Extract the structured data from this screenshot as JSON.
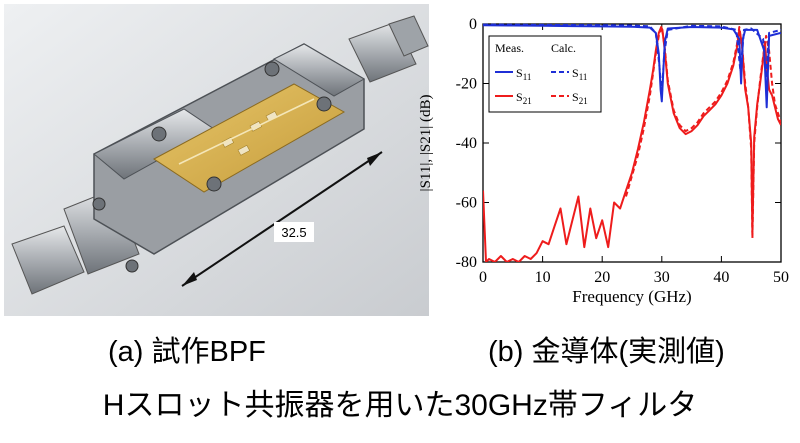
{
  "photo": {
    "dimension_label": "32.5"
  },
  "captions": {
    "a": "(a) 試作BPF",
    "b": "(b) 金導体(実測値)",
    "main": "Hスロット共振器を用いた30GHz帯フィルタ"
  },
  "colors": {
    "s11": "#1f2fd6",
    "s21": "#ee1c1c",
    "board": "#d8b454",
    "metal": "#b9bcc0"
  },
  "chart_data": {
    "type": "line",
    "xlabel": "Frequency (GHz)",
    "ylabel": "|S11|, |S21| (dB)",
    "xlim": [
      0,
      50
    ],
    "ylim": [
      -80,
      0
    ],
    "xticks": [
      0,
      10,
      20,
      30,
      40,
      50
    ],
    "yticks": [
      0,
      -20,
      -40,
      -60,
      -80
    ],
    "grid": false,
    "legend": {
      "placement": "top-left",
      "header_meas": "Meas.",
      "header_calc": "Calc.",
      "entries": [
        {
          "base": "S",
          "sub": "11",
          "meas_label": "S11",
          "calc_label": "S11",
          "color": "#1f2fd6"
        },
        {
          "base": "S",
          "sub": "21",
          "meas_label": "S21",
          "calc_label": "S21",
          "color": "#ee1c1c"
        }
      ]
    },
    "series": [
      {
        "key": "s21_meas",
        "color": "#ee1c1c",
        "dash": false,
        "x": [
          0,
          0.5,
          1,
          2,
          3,
          4,
          5,
          6,
          7,
          8,
          9,
          10,
          11,
          12,
          13,
          14,
          15,
          16,
          17,
          18,
          19,
          20,
          21,
          22,
          23,
          24,
          25,
          26,
          27,
          28,
          28.5,
          29,
          29.5,
          29.9,
          30.1,
          30.5,
          31,
          32,
          33,
          34,
          35,
          36,
          37,
          38,
          39,
          40,
          41,
          42,
          42.6,
          43,
          43.4,
          43.7,
          44,
          44.5,
          45,
          45.2,
          45.5,
          46,
          46.5,
          47,
          47.3,
          47.6,
          48,
          48.5,
          49,
          49.5,
          50
        ],
        "y": [
          -56,
          -80,
          -79,
          -80,
          -78,
          -80,
          -79,
          -80,
          -78,
          -79,
          -77,
          -73,
          -74,
          -68,
          -62,
          -74,
          -66,
          -58,
          -75,
          -62,
          -72,
          -66,
          -75,
          -60,
          -62,
          -56,
          -50,
          -42,
          -33,
          -22,
          -16,
          -9,
          -3,
          -1,
          -2,
          -9,
          -20,
          -30,
          -35,
          -37,
          -36,
          -34,
          -31,
          -29,
          -27,
          -24,
          -20,
          -14,
          -8,
          -2,
          -6,
          -14,
          -22,
          -28,
          -40,
          -70,
          -38,
          -27,
          -20,
          -12,
          -6,
          -14,
          -22,
          -24,
          -28,
          -32,
          -34
        ]
      },
      {
        "key": "s21_calc",
        "color": "#ee1c1c",
        "dash": true,
        "x": [
          24,
          25,
          26,
          27,
          28,
          28.5,
          29,
          29.5,
          30,
          30.5,
          31,
          32,
          33,
          34,
          35,
          36,
          37,
          38,
          39,
          40,
          41,
          42,
          42.6,
          43,
          43.5,
          44,
          44.5,
          45,
          45.2,
          45.5,
          46,
          46.5,
          47,
          47.5,
          48,
          48.5,
          49,
          50
        ],
        "y": [
          -58,
          -51,
          -44,
          -35,
          -24,
          -17,
          -10,
          -4,
          -1,
          -8,
          -19,
          -29,
          -34,
          -36,
          -35,
          -33,
          -30,
          -28,
          -26,
          -23,
          -19,
          -13,
          -7,
          -1,
          -8,
          -20,
          -28,
          -42,
          -72,
          -40,
          -28,
          -19,
          -11,
          -4,
          -9,
          -20,
          -27,
          -33
        ]
      },
      {
        "key": "s11_meas",
        "color": "#1f2fd6",
        "dash": false,
        "x": [
          0,
          5,
          10,
          15,
          20,
          25,
          28,
          29,
          29.5,
          29.8,
          30,
          30.2,
          30.5,
          31,
          35,
          40,
          42,
          43,
          43.3,
          43.6,
          44,
          46,
          47.2,
          47.6,
          48,
          50
        ],
        "y": [
          -0.4,
          -0.5,
          -0.6,
          -0.7,
          -0.8,
          -0.9,
          -1.2,
          -3,
          -10,
          -22,
          -26,
          -18,
          -6,
          -1.5,
          -1,
          -1.2,
          -1.8,
          -5,
          -20,
          -5,
          -2,
          -2,
          -9,
          -28,
          -4,
          -3
        ]
      },
      {
        "key": "s11_calc",
        "color": "#1f2fd6",
        "dash": true,
        "x": [
          0,
          10,
          20,
          25,
          28,
          29,
          29.6,
          30,
          30.4,
          31,
          35,
          40,
          42.5,
          43.2,
          43.8,
          45,
          47,
          47.5,
          48,
          50
        ],
        "y": [
          -0.2,
          -0.3,
          -0.4,
          -0.5,
          -0.8,
          -3,
          -14,
          -24,
          -10,
          -2,
          -0.6,
          -0.8,
          -2,
          -16,
          -2,
          -1.5,
          -5,
          -18,
          -3,
          -2
        ]
      }
    ]
  }
}
